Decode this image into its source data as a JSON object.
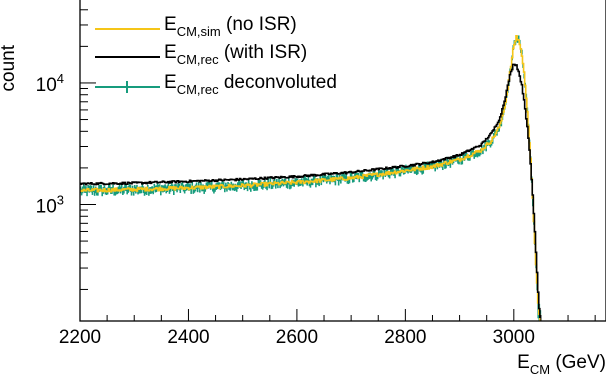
{
  "chart_data": {
    "type": "line",
    "xlabel": {
      "main": "E",
      "sub": "CM",
      "tail": " (GeV)"
    },
    "ylabel": "count",
    "xlim": [
      2200,
      3170
    ],
    "ylim": [
      110,
      50000
    ],
    "yscale": "log",
    "x_ticks": [
      2200,
      2400,
      2600,
      2800,
      3000
    ],
    "x_tick_labels": [
      "2200",
      "2400",
      "2600",
      "2800",
      "3000"
    ],
    "y_ticks": [
      1000,
      10000
    ],
    "y_tick_labels": [
      {
        "base": "10",
        "exp": "3"
      },
      {
        "base": "10",
        "exp": "4"
      }
    ],
    "legend_position": "top-left",
    "colors": {
      "sim": "#f5c518",
      "rec": "#000000",
      "deconv": "#179c7d"
    },
    "series": [
      {
        "id": "sim",
        "legend": {
          "main": "E",
          "sub": "CM,sim",
          "tail": " (no ISR)"
        },
        "style": "line",
        "x": [
          2200,
          2300,
          2400,
          2500,
          2600,
          2700,
          2800,
          2850,
          2900,
          2940,
          2960,
          2975,
          2985,
          2993,
          3000,
          3005,
          3010,
          3015,
          3020,
          3025,
          3030,
          3035,
          3040,
          3045,
          3048
        ],
        "y": [
          1300,
          1330,
          1370,
          1430,
          1520,
          1650,
          1900,
          2050,
          2350,
          2800,
          3400,
          4500,
          7000,
          12000,
          20000,
          24000,
          22000,
          17000,
          11000,
          6000,
          2800,
          1100,
          400,
          150,
          110
        ]
      },
      {
        "id": "rec",
        "legend": {
          "main": "E",
          "sub": "CM,rec",
          "tail": " (with ISR)"
        },
        "style": "line",
        "x": [
          2200,
          2300,
          2400,
          2500,
          2600,
          2700,
          2800,
          2850,
          2900,
          2940,
          2960,
          2975,
          2985,
          2993,
          3000,
          3005,
          3010,
          3015,
          3020,
          3025,
          3030,
          3035,
          3040,
          3045,
          3048
        ],
        "y": [
          1480,
          1500,
          1550,
          1610,
          1700,
          1840,
          2070,
          2230,
          2550,
          3100,
          3900,
          5200,
          7800,
          11500,
          14500,
          14000,
          12000,
          9500,
          6800,
          4300,
          2500,
          1200,
          500,
          190,
          120
        ]
      },
      {
        "id": "deconv",
        "legend": {
          "main": "E",
          "sub": "CM,rec",
          "tail": " deconvoluted"
        },
        "style": "error-bars",
        "x": [
          2200,
          2300,
          2400,
          2500,
          2600,
          2700,
          2800,
          2850,
          2900,
          2940,
          2960,
          2975,
          2985,
          2993,
          3000,
          3005,
          3010,
          3015,
          3020,
          3025,
          3030,
          3035,
          3040,
          3045,
          3048
        ],
        "y": [
          1300,
          1330,
          1370,
          1430,
          1520,
          1650,
          1900,
          2050,
          2350,
          2800,
          3400,
          4500,
          7000,
          12000,
          20000,
          24000,
          22000,
          17000,
          11000,
          6000,
          2800,
          1100,
          400,
          150,
          110
        ]
      }
    ]
  }
}
